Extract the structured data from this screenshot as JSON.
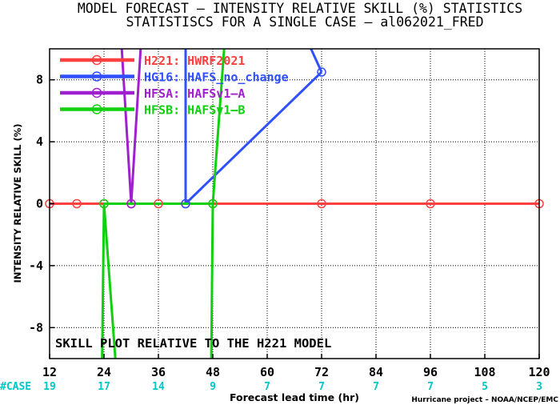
{
  "chart_data": {
    "type": "line",
    "title": "MODEL FORECAST – INTENSITY RELATIVE SKILL (%) STATISTICS",
    "subtitle": "STATISTISCS FOR A SINGLE CASE – al062021_FRED",
    "xlabel": "Forecast lead time (hr)",
    "ylabel": "INTENSITY RELATIVE SKILL (%)",
    "xlim": [
      12,
      120
    ],
    "ylim": [
      -10,
      10
    ],
    "x_ticks": [
      12,
      24,
      36,
      48,
      60,
      72,
      84,
      96,
      108,
      120
    ],
    "y_ticks": [
      -8,
      -4,
      0,
      4,
      8
    ],
    "grid": true,
    "legend_position": "top-left",
    "case_label": "#CASE",
    "case_x": [
      12,
      24,
      36,
      48,
      60,
      72,
      84,
      96,
      108,
      120
    ],
    "case_counts": [
      "19",
      "17",
      "14",
      "9",
      "7",
      "7",
      "7",
      "7",
      "5",
      "3"
    ],
    "annotation": "SKILL PLOT RELATIVE TO THE H221 MODEL",
    "credit": "Hurricane project – NOAA/NCEP/EMC",
    "series": [
      {
        "name": "H221: HWRF2021",
        "color": "#ff4040",
        "x": [
          12,
          18,
          24,
          30,
          36,
          42,
          48,
          72,
          96,
          120
        ],
        "y": [
          0,
          0,
          0,
          0,
          0,
          0,
          0,
          0,
          0,
          0
        ]
      },
      {
        "name": "HG16: HAFS_no_change",
        "color": "#3050ff",
        "x": [
          42,
          72
        ],
        "y": [
          0,
          8.5
        ]
      },
      {
        "name": "HFSA: HAFSv1–A",
        "color": "#a020d0",
        "x": [
          30
        ],
        "y": [
          0
        ]
      },
      {
        "name": "HFSB: HAFSv1–B",
        "color": "#10d010",
        "x": [
          24,
          48
        ],
        "y": [
          0,
          0
        ]
      }
    ]
  }
}
